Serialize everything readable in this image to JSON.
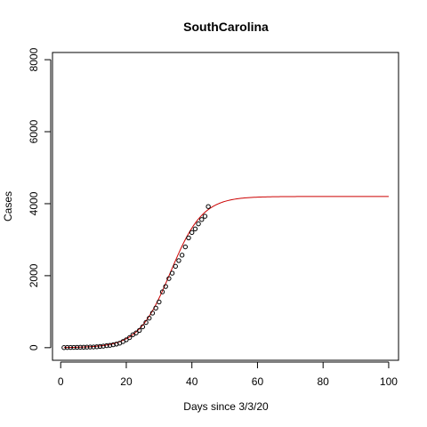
{
  "chart_data": {
    "type": "scatter",
    "title": "SouthCarolina",
    "xlabel": "Days since 3/3/20",
    "ylabel": "Cases",
    "xlim": [
      -2.5,
      103
    ],
    "ylim": [
      -350,
      8200
    ],
    "x_ticks": [
      "0",
      "20",
      "40",
      "60",
      "80",
      "100"
    ],
    "y_ticks": [
      "0",
      "2000",
      "4000",
      "6000",
      "8000"
    ],
    "grid": false,
    "legend": "none",
    "colors": {
      "points": "#000000",
      "fit_line": "#cc0000"
    },
    "series": [
      {
        "kind": "points",
        "x": [
          1,
          2,
          3,
          4,
          5,
          6,
          7,
          8,
          9,
          10,
          11,
          12,
          13,
          14,
          15,
          16,
          17,
          18,
          19,
          20,
          21,
          22,
          23,
          24,
          25,
          26,
          27,
          28,
          29,
          30,
          31,
          32,
          33,
          34,
          35,
          36,
          37,
          38,
          39,
          40,
          41,
          42,
          43,
          44,
          45
        ],
        "y": [
          2,
          5,
          7,
          8,
          10,
          12,
          13,
          15,
          18,
          20,
          25,
          35,
          42,
          55,
          65,
          80,
          100,
          125,
          170,
          220,
          280,
          360,
          410,
          480,
          580,
          700,
          820,
          960,
          1100,
          1270,
          1550,
          1700,
          1920,
          2070,
          2260,
          2420,
          2570,
          2800,
          3050,
          3200,
          3300,
          3440,
          3560,
          3650,
          3920
        ]
      },
      {
        "kind": "line",
        "fit": {
          "K": 4200,
          "r": 0.205,
          "x0": 33.5
        },
        "x_range": [
          1,
          100
        ]
      }
    ]
  }
}
